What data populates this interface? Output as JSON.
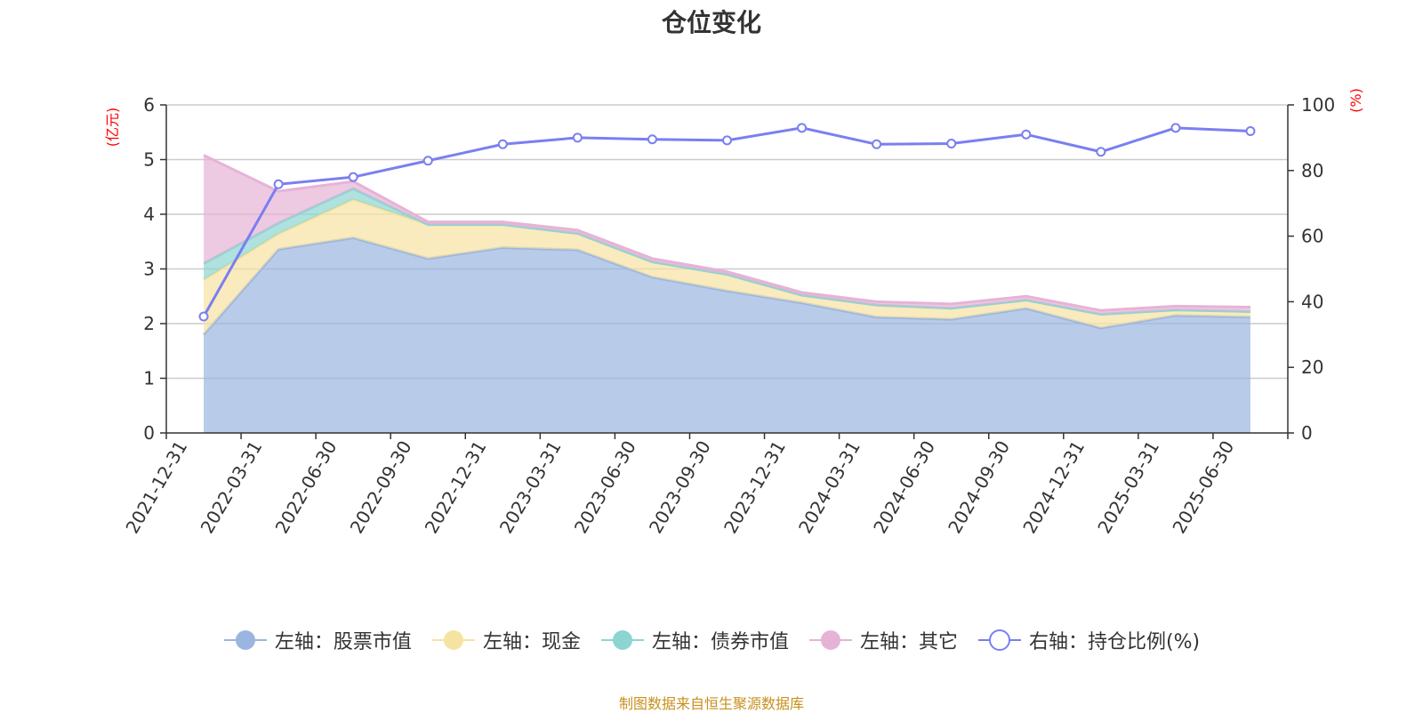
{
  "chart_data": {
    "type": "area",
    "title": "仓位变化",
    "left_axis_unit": "(亿元)",
    "right_axis_unit": "(%)",
    "categories": [
      "2021-12-31",
      "2022-03-31",
      "2022-06-30",
      "2022-09-30",
      "2022-12-31",
      "2023-03-31",
      "2023-06-30",
      "2023-09-30",
      "2023-12-31",
      "2024-03-31",
      "2024-06-30",
      "2024-09-30",
      "2024-12-31",
      "2025-03-31",
      "2025-06-30"
    ],
    "left_ylim": [
      0,
      6
    ],
    "left_ticks": [
      0,
      1,
      2,
      3,
      4,
      5,
      6
    ],
    "right_ylim": [
      0,
      100
    ],
    "right_ticks": [
      0,
      20,
      40,
      60,
      80,
      100
    ],
    "grid": true,
    "legend_position": "bottom",
    "stack_order": [
      "左轴：股票市值",
      "左轴：现金",
      "左轴：债券市值",
      "左轴：其它"
    ],
    "series": [
      {
        "name": "左轴：股票市值",
        "axis": "left",
        "color": "#9ab5e0",
        "values": [
          1.8,
          3.36,
          3.57,
          3.19,
          3.39,
          3.35,
          2.85,
          2.6,
          2.38,
          2.12,
          2.08,
          2.28,
          1.92,
          2.15,
          2.12
        ]
      },
      {
        "name": "左轴：现金",
        "axis": "left",
        "color": "#f6e3a1",
        "values": [
          1.0,
          0.28,
          0.7,
          0.62,
          0.42,
          0.3,
          0.28,
          0.3,
          0.14,
          0.22,
          0.2,
          0.15,
          0.25,
          0.1,
          0.1
        ]
      },
      {
        "name": "左轴：债券市值",
        "axis": "left",
        "color": "#8dd4d2",
        "values": [
          0.3,
          0.2,
          0.2,
          0.0,
          0.0,
          0.0,
          0.0,
          0.0,
          0.0,
          0.0,
          0.0,
          0.0,
          0.0,
          0.0,
          0.0
        ]
      },
      {
        "name": "左轴：其它",
        "axis": "left",
        "color": "#e6b3d6",
        "values": [
          1.98,
          0.58,
          0.13,
          0.05,
          0.05,
          0.06,
          0.06,
          0.05,
          0.05,
          0.06,
          0.08,
          0.07,
          0.07,
          0.07,
          0.08
        ]
      },
      {
        "name": "右轴：持仓比例(%)",
        "axis": "right",
        "color": "#7a7ff0",
        "values": [
          35.5,
          75.8,
          78.0,
          83.0,
          88.0,
          90.0,
          89.5,
          89.2,
          93.0,
          88.0,
          88.2,
          91.0,
          85.7,
          93.0,
          92.0
        ]
      }
    ]
  },
  "source_note": "制图数据来自恒生聚源数据库"
}
